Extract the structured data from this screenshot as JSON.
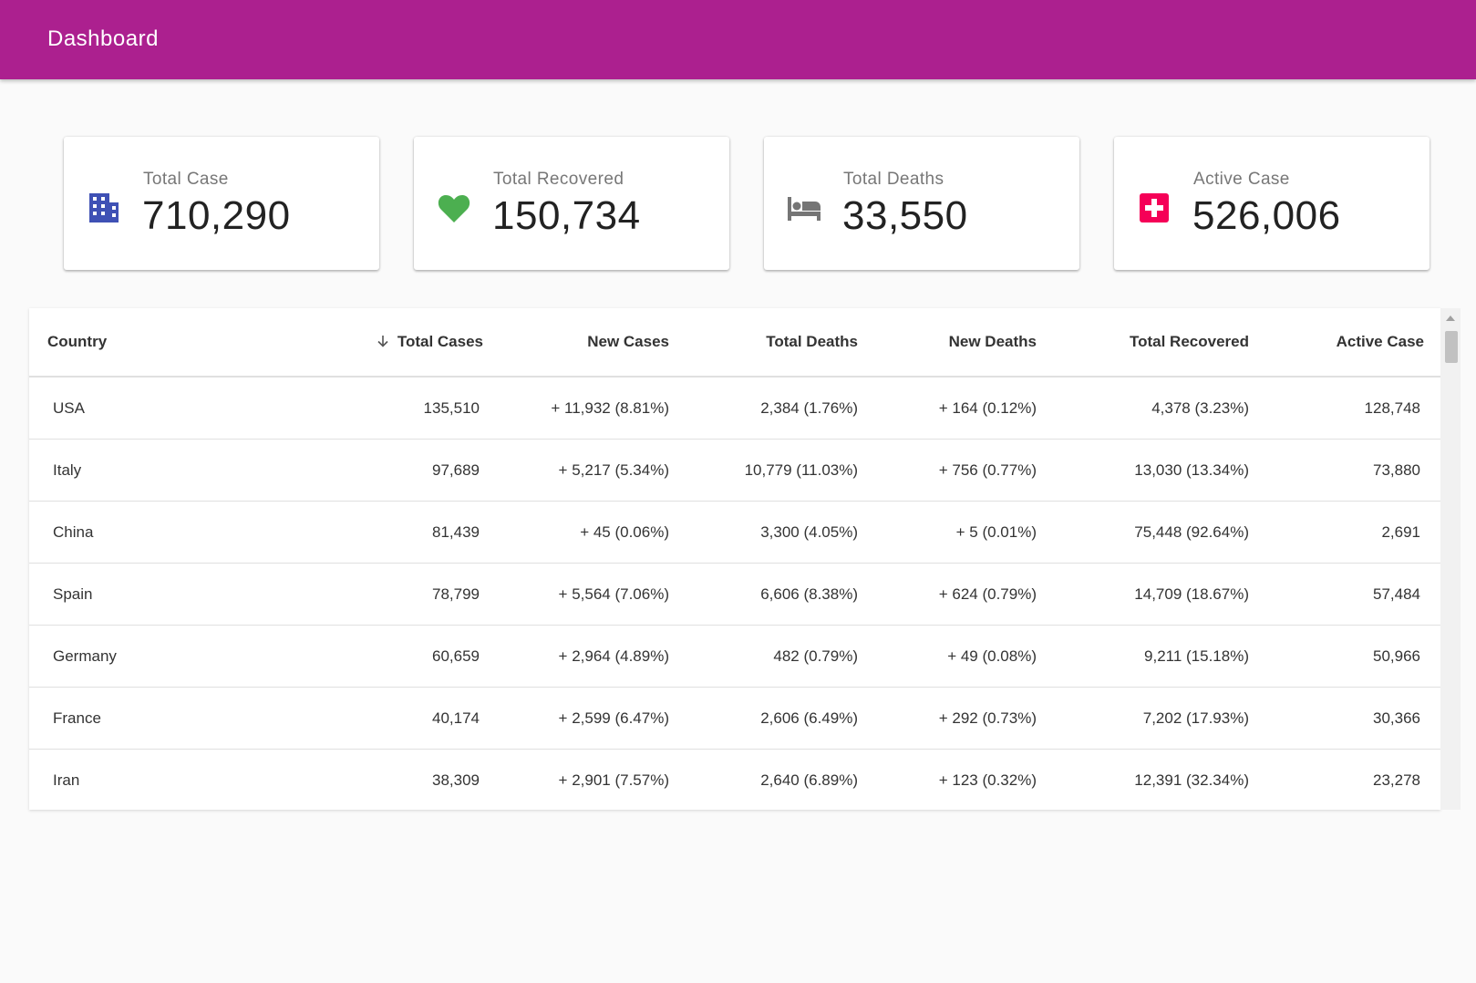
{
  "appbar": {
    "title": "Dashboard"
  },
  "cards": [
    {
      "label": "Total Case",
      "value": "710,290",
      "icon": "building-icon",
      "color": "#3f51b5"
    },
    {
      "label": "Total Recovered",
      "value": "150,734",
      "icon": "heart-icon",
      "color": "#4caf50"
    },
    {
      "label": "Total Deaths",
      "value": "33,550",
      "icon": "bed-icon",
      "color": "#757575"
    },
    {
      "label": "Active Case",
      "value": "526,006",
      "icon": "medical-cross-icon",
      "color": "#f50057"
    }
  ],
  "table": {
    "columns": [
      "Country",
      "Total Cases",
      "New Cases",
      "Total Deaths",
      "New Deaths",
      "Total Recovered",
      "Active Case"
    ],
    "sort_icon": "arrow-down-icon",
    "rows": [
      [
        "USA",
        "135,510",
        "+ 11,932 (8.81%)",
        "2,384 (1.76%)",
        "+ 164 (0.12%)",
        "4,378 (3.23%)",
        "128,748"
      ],
      [
        "Italy",
        "97,689",
        "+ 5,217 (5.34%)",
        "10,779 (11.03%)",
        "+ 756 (0.77%)",
        "13,030 (13.34%)",
        "73,880"
      ],
      [
        "China",
        "81,439",
        "+ 45 (0.06%)",
        "3,300 (4.05%)",
        "+ 5 (0.01%)",
        "75,448 (92.64%)",
        "2,691"
      ],
      [
        "Spain",
        "78,799",
        "+ 5,564 (7.06%)",
        "6,606 (8.38%)",
        "+ 624 (0.79%)",
        "14,709 (18.67%)",
        "57,484"
      ],
      [
        "Germany",
        "60,659",
        "+ 2,964 (4.89%)",
        "482 (0.79%)",
        "+ 49 (0.08%)",
        "9,211 (15.18%)",
        "50,966"
      ],
      [
        "France",
        "40,174",
        "+ 2,599 (6.47%)",
        "2,606 (6.49%)",
        "+ 292 (0.73%)",
        "7,202 (17.93%)",
        "30,366"
      ],
      [
        "Iran",
        "38,309",
        "+ 2,901 (7.57%)",
        "2,640 (6.89%)",
        "+ 123 (0.32%)",
        "12,391 (32.34%)",
        "23,278"
      ]
    ]
  }
}
